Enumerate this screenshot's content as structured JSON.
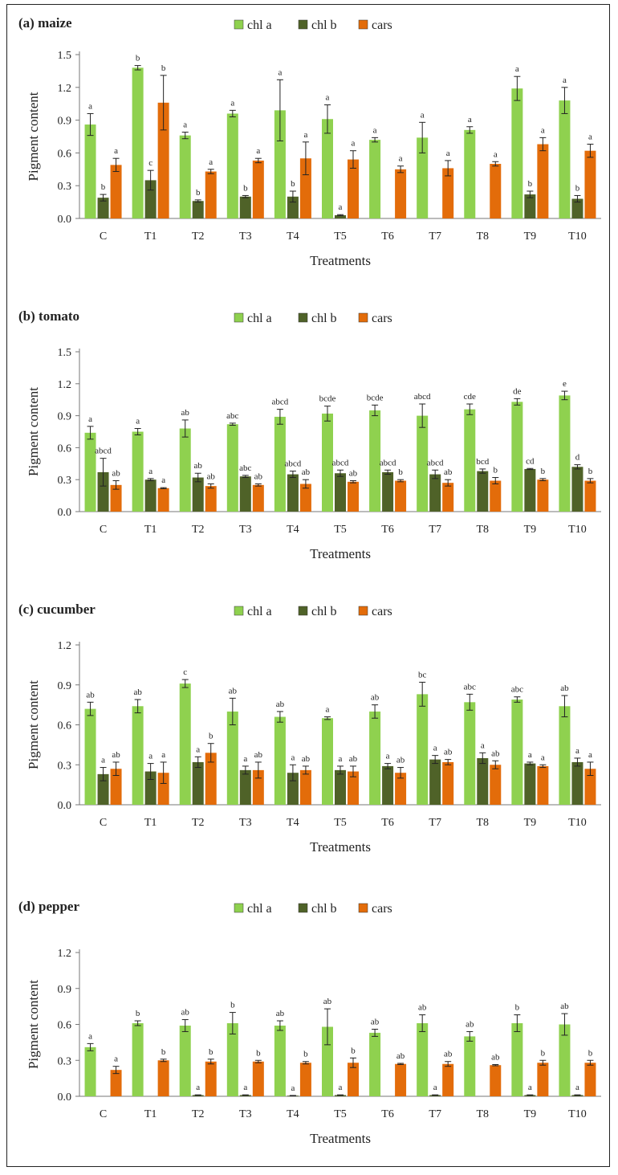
{
  "colors": {
    "chl_a": "#8fd14f",
    "chl_b": "#4f6228",
    "cars": "#e36c0a"
  },
  "chart_data": [
    {
      "type": "bar",
      "panel_label": "(a) maize",
      "xlabel": "Treatments",
      "ylabel": "Pigment content",
      "ylim": [
        0,
        1.5
      ],
      "yticks": [
        "0.0",
        "0.3",
        "0.6",
        "0.9",
        "1.2",
        "1.5"
      ],
      "legend_position": "top-center",
      "grid": false,
      "categories": [
        "C",
        "T1",
        "T2",
        "T3",
        "T4",
        "T5",
        "T6",
        "T7",
        "T8",
        "T9",
        "T10"
      ],
      "series": [
        {
          "name": "chl a",
          "color_key": "chl_a",
          "values": [
            0.86,
            1.38,
            0.76,
            0.96,
            0.99,
            0.91,
            0.72,
            0.74,
            0.81,
            1.19,
            1.08
          ],
          "errors": [
            0.1,
            0.02,
            0.03,
            0.03,
            0.28,
            0.13,
            0.02,
            0.14,
            0.03,
            0.11,
            0.12
          ],
          "letters": [
            "a",
            "b",
            "a",
            "a",
            "a",
            "a",
            "a",
            "a",
            "a",
            "a",
            "a"
          ]
        },
        {
          "name": "chl b",
          "color_key": "chl_b",
          "values": [
            0.19,
            0.35,
            0.16,
            0.2,
            0.2,
            0.03,
            null,
            null,
            null,
            0.22,
            0.18
          ],
          "errors": [
            0.03,
            0.09,
            0.01,
            0.01,
            0.05,
            0.005,
            null,
            null,
            null,
            0.03,
            0.03
          ],
          "letters": [
            "b",
            "c",
            "b",
            "b",
            "b",
            "a",
            "",
            "",
            "",
            "b",
            "b"
          ]
        },
        {
          "name": "cars",
          "color_key": "cars",
          "values": [
            0.49,
            1.06,
            0.43,
            0.53,
            0.55,
            0.54,
            0.45,
            0.46,
            0.5,
            0.68,
            0.62
          ],
          "errors": [
            0.06,
            0.25,
            0.02,
            0.02,
            0.15,
            0.08,
            0.03,
            0.07,
            0.02,
            0.06,
            0.06
          ],
          "letters": [
            "a",
            "b",
            "a",
            "a",
            "a",
            "a",
            "a",
            "a",
            "a",
            "a",
            "a"
          ]
        }
      ]
    },
    {
      "type": "bar",
      "panel_label": "(b) tomato",
      "xlabel": "Treatments",
      "ylabel": "Pigment content",
      "ylim": [
        0,
        1.5
      ],
      "yticks": [
        "0.0",
        "0.3",
        "0.6",
        "0.9",
        "1.2",
        "1.5"
      ],
      "legend_position": "top-center",
      "grid": false,
      "categories": [
        "C",
        "T1",
        "T2",
        "T3",
        "T4",
        "T5",
        "T6",
        "T7",
        "T8",
        "T9",
        "T10"
      ],
      "series": [
        {
          "name": "chl a",
          "color_key": "chl_a",
          "values": [
            0.74,
            0.75,
            0.78,
            0.82,
            0.89,
            0.92,
            0.95,
            0.9,
            0.96,
            1.03,
            1.09
          ],
          "errors": [
            0.06,
            0.03,
            0.08,
            0.01,
            0.07,
            0.07,
            0.05,
            0.11,
            0.05,
            0.03,
            0.04
          ],
          "letters": [
            "a",
            "a",
            "ab",
            "abc",
            "abcd",
            "bcde",
            "bcde",
            "abcd",
            "cde",
            "de",
            "e"
          ]
        },
        {
          "name": "chl b",
          "color_key": "chl_b",
          "values": [
            0.37,
            0.3,
            0.32,
            0.33,
            0.35,
            0.36,
            0.37,
            0.35,
            0.38,
            0.4,
            0.42
          ],
          "errors": [
            0.13,
            0.01,
            0.04,
            0.01,
            0.03,
            0.03,
            0.02,
            0.04,
            0.02,
            0.005,
            0.02
          ],
          "letters": [
            "abcd",
            "a",
            "ab",
            "abc",
            "abcd",
            "abcd",
            "abcd",
            "abcd",
            "bcd",
            "cd",
            "d"
          ]
        },
        {
          "name": "cars",
          "color_key": "cars",
          "values": [
            0.25,
            0.22,
            0.24,
            0.25,
            0.26,
            0.28,
            0.29,
            0.27,
            0.29,
            0.3,
            0.29
          ],
          "errors": [
            0.04,
            0.005,
            0.02,
            0.01,
            0.04,
            0.01,
            0.01,
            0.03,
            0.03,
            0.01,
            0.02
          ],
          "letters": [
            "ab",
            "a",
            "ab",
            "ab",
            "ab",
            "ab",
            "b",
            "ab",
            "b",
            "b",
            "b"
          ]
        }
      ]
    },
    {
      "type": "bar",
      "panel_label": "(c) cucumber",
      "xlabel": "Treatments",
      "ylabel": "Pigment content",
      "ylim": [
        0,
        1.2
      ],
      "yticks": [
        "0.0",
        "0.3",
        "0.6",
        "0.9",
        "1.2"
      ],
      "legend_position": "top-center",
      "grid": false,
      "categories": [
        "C",
        "T1",
        "T2",
        "T3",
        "T4",
        "T5",
        "T6",
        "T7",
        "T8",
        "T9",
        "T10"
      ],
      "series": [
        {
          "name": "chl a",
          "color_key": "chl_a",
          "values": [
            0.72,
            0.74,
            0.91,
            0.7,
            0.66,
            0.65,
            0.7,
            0.83,
            0.77,
            0.79,
            0.74
          ],
          "errors": [
            0.05,
            0.05,
            0.03,
            0.1,
            0.04,
            0.01,
            0.05,
            0.09,
            0.06,
            0.02,
            0.08
          ],
          "letters": [
            "ab",
            "ab",
            "c",
            "ab",
            "ab",
            "a",
            "ab",
            "bc",
            "abc",
            "abc",
            "ab"
          ]
        },
        {
          "name": "chl b",
          "color_key": "chl_b",
          "values": [
            0.23,
            0.25,
            0.32,
            0.26,
            0.24,
            0.26,
            0.29,
            0.34,
            0.35,
            0.31,
            0.32
          ],
          "errors": [
            0.05,
            0.06,
            0.04,
            0.03,
            0.06,
            0.03,
            0.02,
            0.03,
            0.04,
            0.01,
            0.03
          ],
          "letters": [
            "a",
            "a",
            "a",
            "a",
            "a",
            "a",
            "a",
            "a",
            "a",
            "a",
            "a"
          ]
        },
        {
          "name": "cars",
          "color_key": "cars",
          "values": [
            0.27,
            0.24,
            0.39,
            0.26,
            0.26,
            0.25,
            0.24,
            0.32,
            0.3,
            0.29,
            0.27
          ],
          "errors": [
            0.05,
            0.08,
            0.07,
            0.06,
            0.03,
            0.04,
            0.04,
            0.02,
            0.03,
            0.01,
            0.05
          ],
          "letters": [
            "ab",
            "a",
            "b",
            "ab",
            "ab",
            "ab",
            "ab",
            "ab",
            "ab",
            "a",
            "a"
          ]
        }
      ]
    },
    {
      "type": "bar",
      "panel_label": "(d) pepper",
      "xlabel": "Treatments",
      "ylabel": "Pigment content",
      "ylim": [
        0,
        1.2
      ],
      "yticks": [
        "0.0",
        "0.3",
        "0.6",
        "0.9",
        "1.2"
      ],
      "legend_position": "top-center",
      "grid": false,
      "categories": [
        "C",
        "T1",
        "T2",
        "T3",
        "T4",
        "T5",
        "T6",
        "T7",
        "T8",
        "T9",
        "T10"
      ],
      "series": [
        {
          "name": "chl a",
          "color_key": "chl_a",
          "values": [
            0.41,
            0.61,
            0.59,
            0.61,
            0.59,
            0.58,
            0.53,
            0.61,
            0.5,
            0.61,
            0.6
          ],
          "errors": [
            0.03,
            0.02,
            0.05,
            0.09,
            0.04,
            0.15,
            0.03,
            0.07,
            0.04,
            0.07,
            0.09
          ],
          "letters": [
            "a",
            "b",
            "ab",
            "b",
            "ab",
            "ab",
            "ab",
            "ab",
            "ab",
            "b",
            "ab"
          ]
        },
        {
          "name": "chl b",
          "color_key": "chl_b",
          "values": [
            null,
            null,
            0.01,
            0.01,
            0.005,
            0.01,
            null,
            0.01,
            null,
            0.01,
            0.01
          ],
          "errors": [
            null,
            null,
            0.002,
            0.002,
            0.002,
            0.002,
            null,
            0.002,
            null,
            0.002,
            0.002
          ],
          "letters": [
            "",
            "",
            "a",
            "a",
            "a",
            "a",
            "",
            "a",
            "",
            "a",
            "a"
          ]
        },
        {
          "name": "cars",
          "color_key": "cars",
          "values": [
            0.22,
            0.3,
            0.29,
            0.29,
            0.28,
            0.28,
            0.27,
            0.27,
            0.26,
            0.28,
            0.28
          ],
          "errors": [
            0.03,
            0.01,
            0.02,
            0.01,
            0.01,
            0.04,
            0.005,
            0.02,
            0.005,
            0.02,
            0.02
          ],
          "letters": [
            "a",
            "b",
            "b",
            "b",
            "b",
            "b",
            "ab",
            "ab",
            "ab",
            "b",
            "b"
          ]
        }
      ]
    }
  ]
}
